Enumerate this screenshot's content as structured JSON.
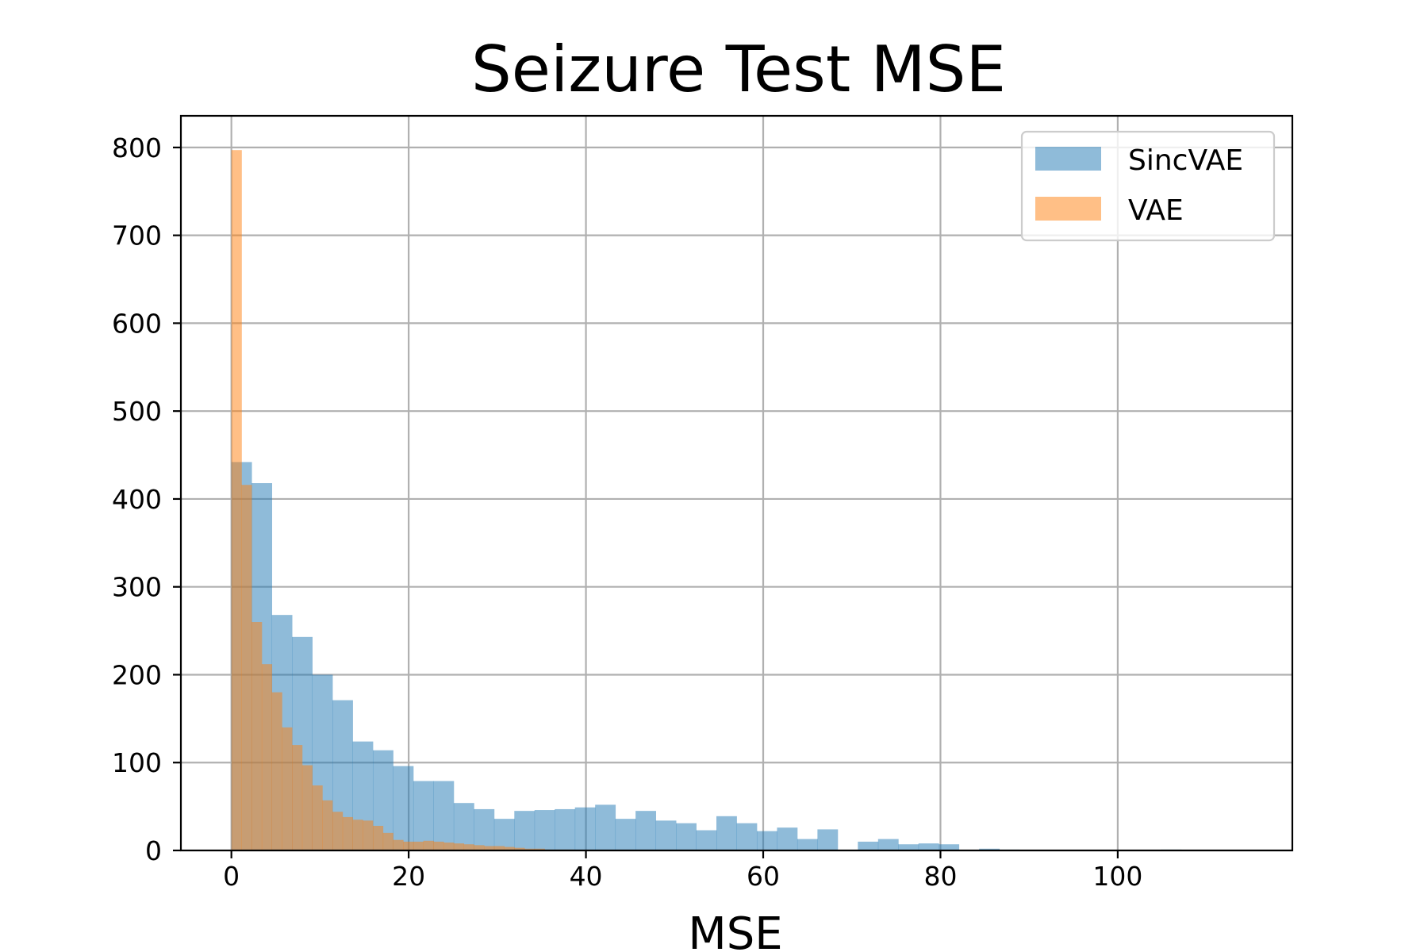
{
  "chart_data": {
    "type": "bar",
    "title": "Seizure Test MSE",
    "xlabel": "MSE",
    "ylabel": "",
    "xlim": [
      -5.7,
      119.7
    ],
    "ylim": [
      0,
      836
    ],
    "xticks": [
      0,
      20,
      40,
      60,
      80,
      100
    ],
    "yticks": [
      0,
      100,
      200,
      300,
      400,
      500,
      600,
      700,
      800
    ],
    "grid": true,
    "legend_position": "top-right",
    "series": [
      {
        "name": "SincVAE",
        "color": "#1f77b4",
        "opacity": 0.5,
        "bin_width": 2.28,
        "bin_start": 0,
        "counts": [
          442,
          418,
          268,
          243,
          200,
          171,
          124,
          114,
          96,
          79,
          79,
          54,
          47,
          36,
          45,
          46,
          47,
          49,
          52,
          36,
          45,
          34,
          31,
          23,
          39,
          31,
          22,
          26,
          13,
          24,
          0,
          10,
          13,
          7,
          8,
          7,
          0,
          2,
          1,
          0,
          0,
          0,
          0,
          0,
          0,
          0,
          1
        ]
      },
      {
        "name": "VAE",
        "color": "#ff7f0e",
        "opacity": 0.5,
        "bin_width": 1.14,
        "bin_start": 0,
        "counts": [
          797,
          416,
          260,
          212,
          180,
          140,
          120,
          97,
          74,
          57,
          44,
          38,
          35,
          34,
          28,
          20,
          12,
          10,
          10,
          11,
          10,
          9,
          8,
          7,
          6,
          5,
          5,
          4,
          3,
          2,
          2,
          1,
          1,
          1,
          0,
          0,
          0,
          0,
          0,
          0
        ]
      }
    ]
  }
}
